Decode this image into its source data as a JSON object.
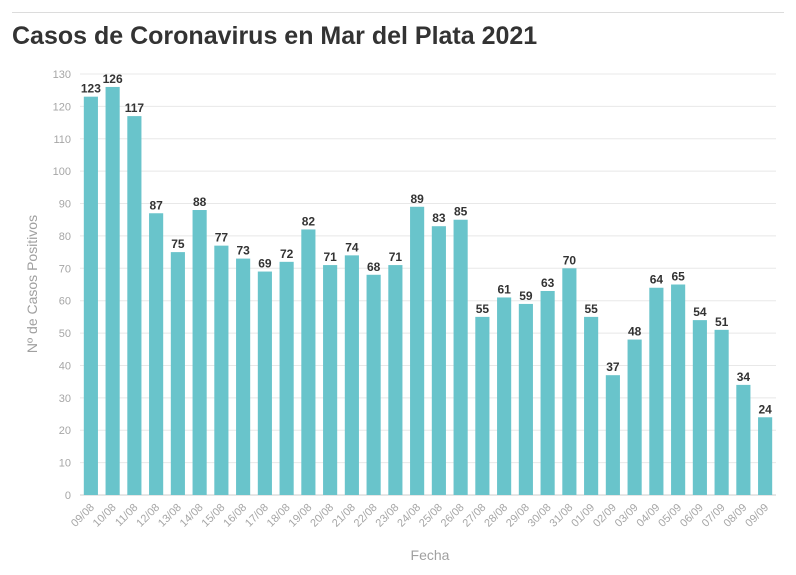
{
  "title": "Casos de Coronavirus en Mar del Plata 2021",
  "colors": {
    "bar": "#69c4cb",
    "grid": "#e8e8e8",
    "tick_text": "#a6a6a6",
    "label_text": "#333333",
    "axis_title": "#a0a0a0"
  },
  "chart_data": {
    "type": "bar",
    "title": "Casos de Coronavirus en Mar del Plata 2021",
    "xlabel": "Fecha",
    "ylabel": "Nº de Casos Positivos",
    "ylim": [
      0,
      130
    ],
    "yticks": [
      0,
      10,
      20,
      30,
      40,
      50,
      60,
      70,
      80,
      90,
      100,
      110,
      120,
      130
    ],
    "grid": true,
    "categories": [
      "09/08",
      "10/08",
      "11/08",
      "12/08",
      "13/08",
      "14/08",
      "15/08",
      "16/08",
      "17/08",
      "18/08",
      "19/08",
      "20/08",
      "21/08",
      "22/08",
      "23/08",
      "24/08",
      "25/08",
      "26/08",
      "27/08",
      "28/08",
      "29/08",
      "30/08",
      "31/08",
      "01/09",
      "02/09",
      "03/09",
      "04/09",
      "05/09",
      "06/09",
      "07/09",
      "08/09",
      "09/09"
    ],
    "values": [
      123,
      126,
      117,
      87,
      75,
      88,
      77,
      73,
      69,
      72,
      82,
      71,
      74,
      68,
      71,
      89,
      83,
      85,
      55,
      61,
      59,
      63,
      70,
      55,
      37,
      48,
      64,
      65,
      54,
      51,
      34,
      24
    ]
  }
}
